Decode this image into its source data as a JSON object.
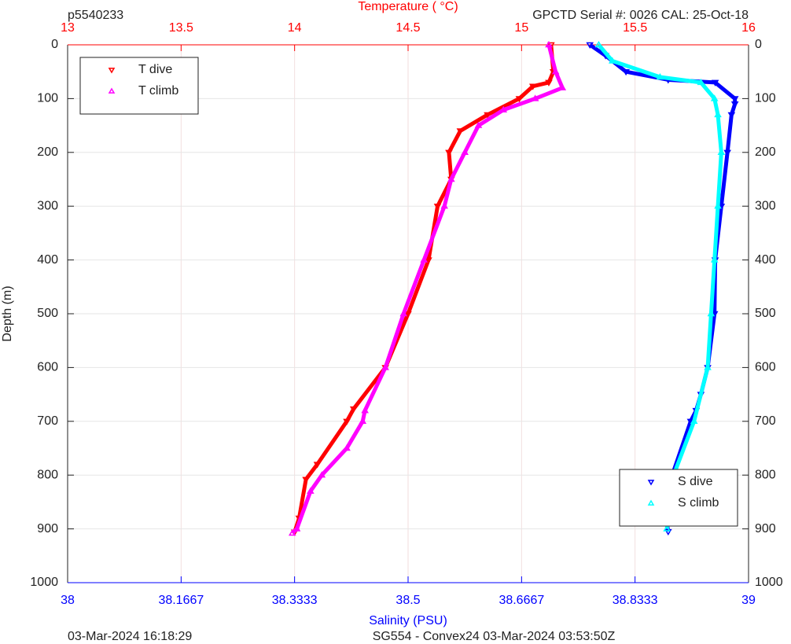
{
  "chart_data": {
    "type": "profile",
    "title_left": "p5540233",
    "title_right": "GPCTD Serial #: 0026 CAL: 25-Oct-18",
    "top_axis_label": "Temperature (    °C)",
    "bottom_axis_label": "Salinity (PSU)",
    "y_label": "Depth (m)",
    "footer_left": "03-Mar-2024 16:18:29",
    "footer_center": "SG554 - Convex24 03-Mar-2024 03:53:50Z",
    "x2lim": [
      13,
      16
    ],
    "x2ticks": [
      13,
      13.5,
      14,
      14.5,
      15,
      15.5,
      16
    ],
    "x2color": "#ff0000",
    "xlim": [
      38,
      39
    ],
    "xticks": [
      38,
      38.1667,
      38.3333,
      38.5,
      38.6667,
      38.8333,
      39
    ],
    "xcolor": "#0000ff",
    "ylim": [
      0,
      1000
    ],
    "yticks": [
      0,
      100,
      200,
      300,
      400,
      500,
      600,
      700,
      800,
      900,
      1000
    ],
    "y_reversed": true,
    "grid": true,
    "series": [
      {
        "name": "T dive",
        "color": "#ff0000",
        "axis": "x2",
        "marker": "down",
        "legend": "upper left",
        "depth": [
          0,
          50,
          70,
          77,
          100,
          130,
          160,
          200,
          250,
          300,
          400,
          500,
          600,
          677,
          700,
          780,
          808,
          880,
          906
        ],
        "values": [
          15.13,
          15.14,
          15.12,
          15.05,
          14.99,
          14.85,
          14.73,
          14.68,
          14.69,
          14.63,
          14.59,
          14.5,
          14.4,
          14.26,
          14.23,
          14.1,
          14.05,
          14.02,
          14.0
        ]
      },
      {
        "name": "T climb",
        "color": "#ff00ff",
        "axis": "x2",
        "marker": "up",
        "legend": "upper left",
        "depth": [
          0,
          50,
          80,
          100,
          121,
          150,
          200,
          250,
          300,
          400,
          500,
          600,
          680,
          700,
          750,
          800,
          830,
          900,
          908
        ],
        "values": [
          15.12,
          15.15,
          15.18,
          15.06,
          14.92,
          14.81,
          14.75,
          14.69,
          14.66,
          14.57,
          14.48,
          14.4,
          14.31,
          14.3,
          14.23,
          14.12,
          14.07,
          14.01,
          13.99
        ]
      },
      {
        "name": "S dive",
        "color": "#0000ff",
        "axis": "x",
        "marker": "down",
        "legend": "lower right",
        "depth": [
          0,
          20,
          50,
          65,
          70,
          100,
          110,
          130,
          200,
          300,
          400,
          500,
          600,
          650,
          680,
          700,
          800,
          850,
          905
        ],
        "values": [
          38.767,
          38.79,
          38.82,
          38.882,
          38.951,
          38.98,
          38.98,
          38.975,
          38.969,
          38.96,
          38.951,
          38.95,
          38.94,
          38.93,
          38.923,
          38.915,
          38.888,
          38.875,
          38.882
        ]
      },
      {
        "name": "S climb",
        "color": "#00ffff",
        "axis": "x",
        "marker": "up",
        "legend": "lower right",
        "depth": [
          0,
          30,
          60,
          70,
          100,
          130,
          200,
          300,
          400,
          500,
          600,
          700,
          800,
          900
        ],
        "values": [
          38.78,
          38.8,
          38.87,
          38.93,
          38.95,
          38.955,
          38.96,
          38.955,
          38.95,
          38.945,
          38.94,
          38.92,
          38.89,
          38.88
        ]
      }
    ]
  }
}
